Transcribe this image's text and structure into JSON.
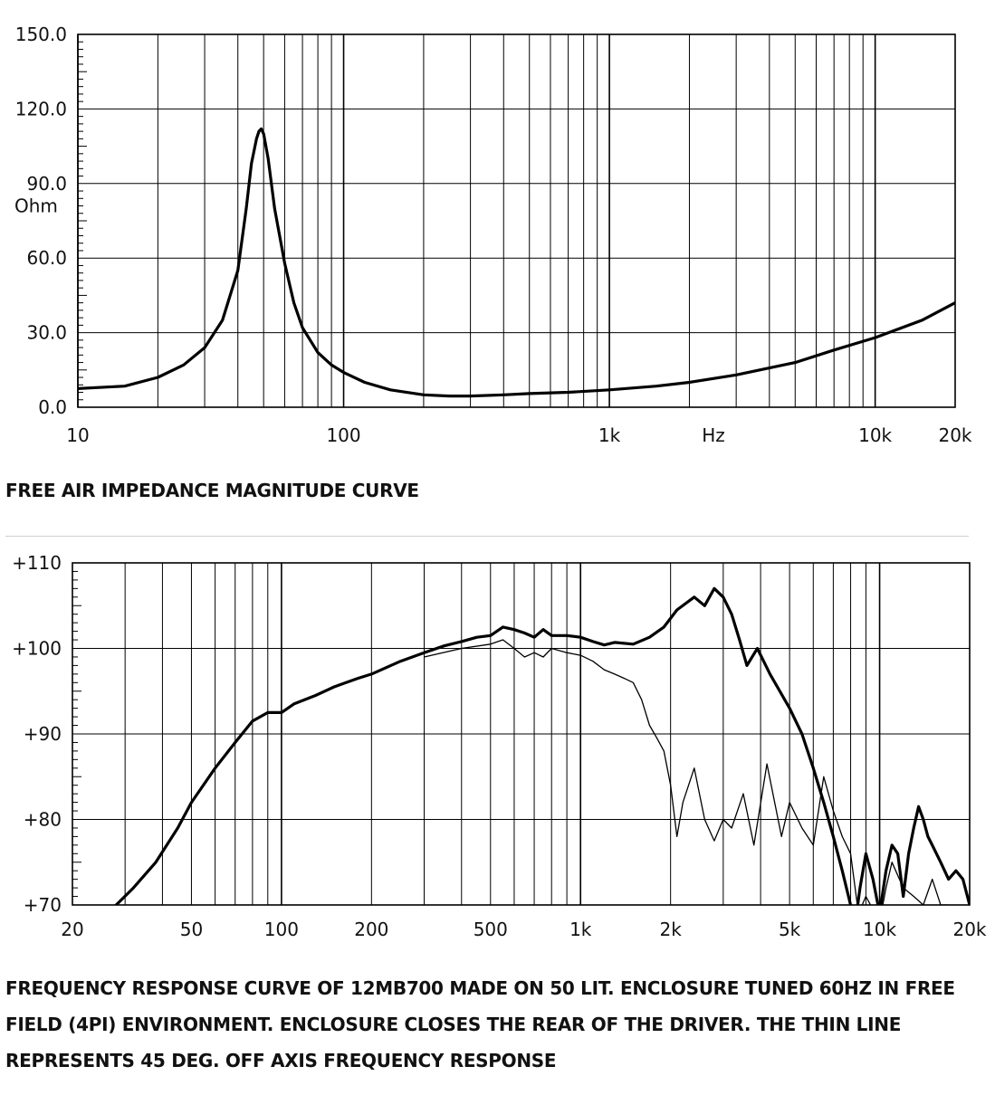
{
  "chart_data": [
    {
      "type": "line",
      "title": "FREE AIR IMPEDANCE MAGNITUDE CURVE",
      "xlabel": "Hz",
      "ylabel": "Ohm",
      "xscale": "log",
      "xlim": [
        10,
        20000
      ],
      "ylim": [
        0,
        150
      ],
      "grid": true,
      "y_ticks": [
        "0.0",
        "30.0",
        "60.0",
        "90.0",
        "120.0",
        "150.0"
      ],
      "x_ticks": [
        {
          "value": 10,
          "label": "10"
        },
        {
          "value": 100,
          "label": "100"
        },
        {
          "value": 1000,
          "label": "1k"
        },
        {
          "value": 10000,
          "label": "10k"
        },
        {
          "value": 20000,
          "label": "20k"
        }
      ],
      "series": [
        {
          "x": [
            10,
            15,
            20,
            25,
            30,
            35,
            40,
            43,
            45,
            47,
            48,
            49,
            50,
            52,
            55,
            60,
            65,
            70,
            80,
            90,
            100,
            120,
            150,
            200,
            250,
            300,
            400,
            500,
            700,
            1000,
            1500,
            2000,
            3000,
            5000,
            7000,
            10000,
            15000,
            20000
          ],
          "y": [
            7.5,
            8.5,
            12,
            17,
            24,
            35,
            55,
            80,
            98,
            108,
            111,
            112,
            110,
            100,
            80,
            58,
            42,
            32,
            22,
            17,
            14,
            10,
            7,
            5,
            4.5,
            4.5,
            5,
            5.5,
            6,
            7,
            8.5,
            10,
            13,
            18,
            23,
            28,
            35,
            42
          ]
        }
      ]
    },
    {
      "type": "line",
      "title": "FREQUENCY RESPONSE CURVE OF 12MB700 MADE ON 50 LIT. ENCLOSURE TUNED 60HZ IN FREE FIELD (4PI) ENVIRONMENT. ENCLOSURE CLOSES THE REAR OF THE DRIVER. THE THIN LINE REPRESENTS 45 DEG. OFF AXIS FREQUENCY RESPONSE",
      "xscale": "log",
      "xlim": [
        20,
        20000
      ],
      "ylim": [
        70,
        110
      ],
      "grid": true,
      "y_ticks": [
        "+70",
        "+80",
        "+90",
        "+100",
        "+110"
      ],
      "x_ticks": [
        {
          "value": 20,
          "label": "20"
        },
        {
          "value": 50,
          "label": "50"
        },
        {
          "value": 100,
          "label": "100"
        },
        {
          "value": 200,
          "label": "200"
        },
        {
          "value": 500,
          "label": "500"
        },
        {
          "value": 1000,
          "label": "1k"
        },
        {
          "value": 2000,
          "label": "2k"
        },
        {
          "value": 5000,
          "label": "5k"
        },
        {
          "value": 10000,
          "label": "10k"
        },
        {
          "value": 20000,
          "label": "20k"
        }
      ],
      "series": [
        {
          "style": "thick",
          "x": [
            28,
            32,
            38,
            45,
            50,
            60,
            70,
            80,
            90,
            100,
            110,
            130,
            150,
            180,
            200,
            250,
            300,
            350,
            400,
            450,
            500,
            550,
            600,
            650,
            700,
            750,
            800,
            900,
            1000,
            1100,
            1200,
            1300,
            1500,
            1700,
            1900,
            2100,
            2400,
            2600,
            2800,
            3000,
            3200,
            3400,
            3600,
            3900,
            4300,
            5000,
            5500,
            6000,
            6500,
            7000,
            7500,
            8000,
            8300,
            8600,
            9000,
            9500,
            10000,
            10500,
            11000,
            11500,
            12000,
            12500,
            13000,
            13500,
            14000,
            14500,
            15000,
            16000,
            17000,
            18000,
            19000,
            20000
          ],
          "y": [
            70,
            72,
            75,
            79,
            82,
            86,
            89,
            91.5,
            92.5,
            92.5,
            93.5,
            94.5,
            95.5,
            96.5,
            97,
            98.5,
            99.5,
            100.3,
            100.8,
            101.3,
            101.5,
            102.5,
            102.2,
            101.8,
            101.3,
            102.2,
            101.5,
            101.5,
            101.3,
            100.8,
            100.4,
            100.7,
            100.5,
            101.3,
            102.5,
            104.5,
            106,
            105,
            107,
            106,
            104,
            101,
            98,
            100,
            97,
            93,
            90,
            86,
            82,
            78,
            74,
            70,
            68,
            72,
            76,
            73,
            69,
            74,
            77,
            76,
            71,
            76,
            79,
            81.5,
            80,
            78,
            77,
            75,
            73,
            74,
            73,
            70
          ]
        },
        {
          "style": "thin",
          "x": [
            300,
            400,
            500,
            550,
            600,
            650,
            700,
            750,
            800,
            900,
            1000,
            1100,
            1200,
            1300,
            1400,
            1500,
            1600,
            1700,
            1800,
            1900,
            2000,
            2100,
            2200,
            2400,
            2600,
            2800,
            3000,
            3200,
            3500,
            3800,
            4200,
            4700,
            5000,
            5500,
            6000,
            6500,
            7000,
            7500,
            8000,
            8500,
            9000,
            10000,
            10500,
            11000,
            12000,
            13000,
            14000,
            15000,
            16000,
            17000
          ],
          "y": [
            99,
            100,
            100.5,
            101,
            100,
            99,
            99.5,
            99,
            100,
            99.5,
            99.2,
            98.5,
            97.5,
            97,
            96.5,
            96,
            94,
            91,
            89.5,
            88,
            84,
            78,
            82,
            86,
            80,
            77.5,
            80,
            79,
            83,
            77,
            86.5,
            78,
            82,
            79,
            77,
            85,
            81,
            78,
            76,
            69,
            71,
            68,
            72,
            75,
            72,
            71,
            70,
            73,
            70,
            70
          ]
        }
      ]
    }
  ]
}
